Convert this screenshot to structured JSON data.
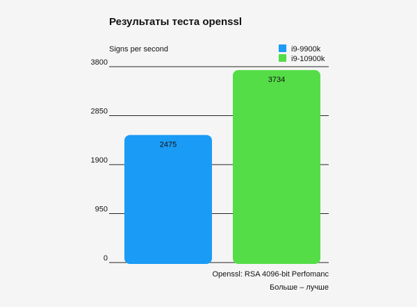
{
  "chart_data": {
    "type": "bar",
    "title": "Результаты теста openssl",
    "ylabel": "Signs per second",
    "xlabel": "Openssl: RSA 4096-bit Perfomanc",
    "note": "Больше – лучше",
    "ylim": [
      0,
      3800
    ],
    "yticks": [
      0,
      950,
      1900,
      2850,
      3800
    ],
    "yticks_text": [
      "0",
      "950",
      "1900",
      "2850",
      "3800"
    ],
    "grid": true,
    "legend_position": "top-right",
    "series": [
      {
        "name": "i9-9900k",
        "value": 2475,
        "value_text": "2475",
        "color": "#1a9bf6"
      },
      {
        "name": "i9-10900k",
        "value": 3734,
        "value_text": "3734",
        "color": "#55dd48"
      }
    ]
  }
}
